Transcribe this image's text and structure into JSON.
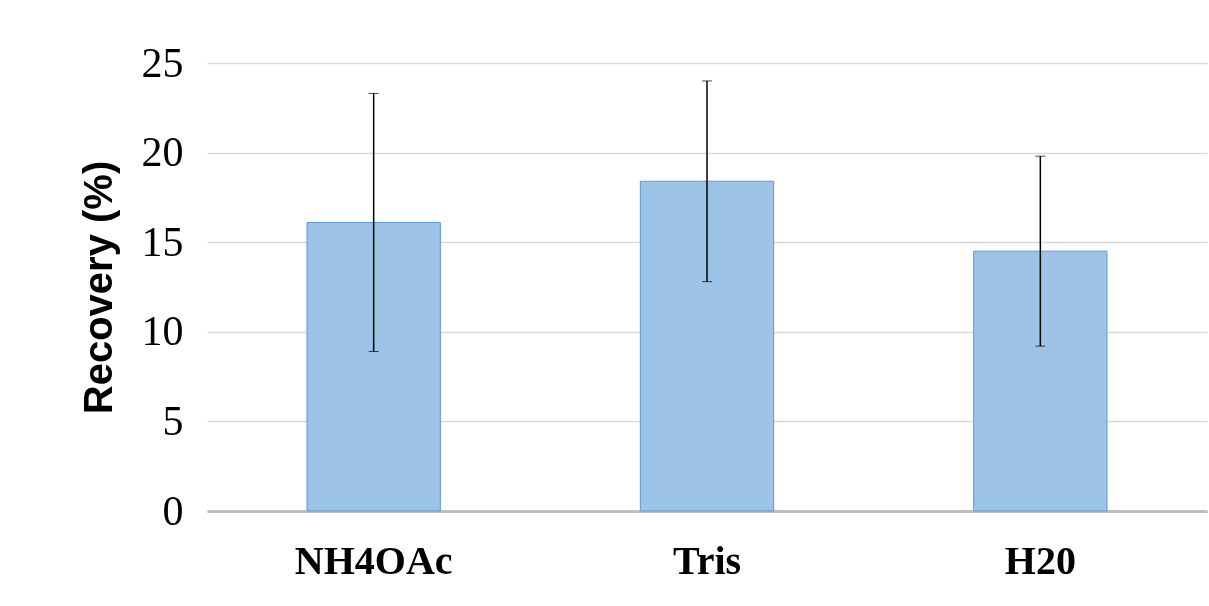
{
  "chart_data": {
    "type": "bar",
    "ylabel": "Recovery (%)",
    "categories": [
      "NH4OAc",
      "Tris",
      "H20"
    ],
    "values": [
      16.1,
      18.4,
      14.5
    ],
    "errors": [
      7.2,
      5.6,
      5.3
    ],
    "color": "#9dc3e6",
    "ylim": [
      0,
      25
    ],
    "yticks": [
      0,
      5,
      10,
      15,
      20,
      25
    ],
    "grid": "y"
  }
}
